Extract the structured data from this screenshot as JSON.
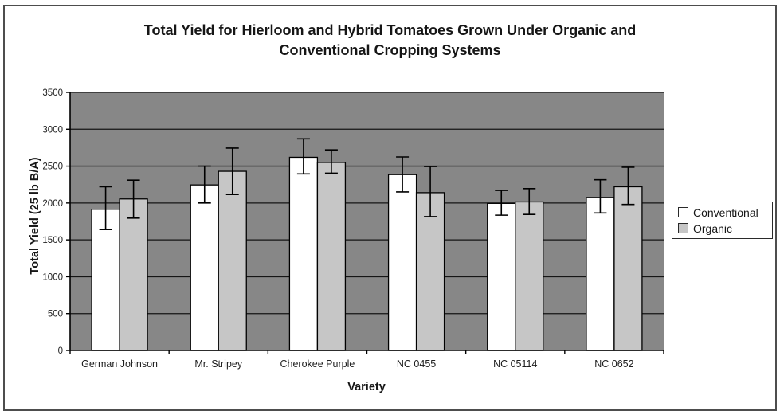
{
  "chart_data": {
    "type": "bar",
    "title": "Total Yield for Hierloom and Hybrid Tomatoes Grown Under Organic and Conventional Cropping Systems",
    "title_lines": [
      "Total Yield for Hierloom and Hybrid Tomatoes Grown Under Organic and",
      "Conventional Cropping Systems"
    ],
    "xlabel": "Variety",
    "ylabel": "Total Yield (25 lb B/A)",
    "ylim": [
      0,
      3500
    ],
    "yticks": [
      0,
      500,
      1000,
      1500,
      2000,
      2500,
      3000,
      3500
    ],
    "grid": true,
    "legend_position": "right",
    "categories": [
      "German Johnson",
      "Mr. Stripey",
      "Cherokee Purple",
      "NC 0455",
      "NC 05114",
      "NC 0652"
    ],
    "series": [
      {
        "name": "Conventional",
        "color": "#ffffff",
        "values": [
          1915,
          2245,
          2620,
          2385,
          1995,
          2075
        ],
        "error_low": [
          1640,
          2000,
          2395,
          2150,
          1835,
          1865
        ],
        "error_high": [
          2220,
          2500,
          2870,
          2625,
          2170,
          2315
        ]
      },
      {
        "name": "Organic",
        "color": "#c6c6c6",
        "values": [
          2055,
          2430,
          2550,
          2140,
          2015,
          2220
        ],
        "error_low": [
          1795,
          2115,
          2405,
          1815,
          1845,
          1980
        ],
        "error_high": [
          2310,
          2745,
          2720,
          2495,
          2195,
          2485
        ]
      }
    ],
    "colors": {
      "plot_background": "#878787",
      "gridline": "#151515",
      "axis": "#000000",
      "bar_border": "#000000",
      "error_bar": "#000000",
      "text": "#202020"
    }
  }
}
